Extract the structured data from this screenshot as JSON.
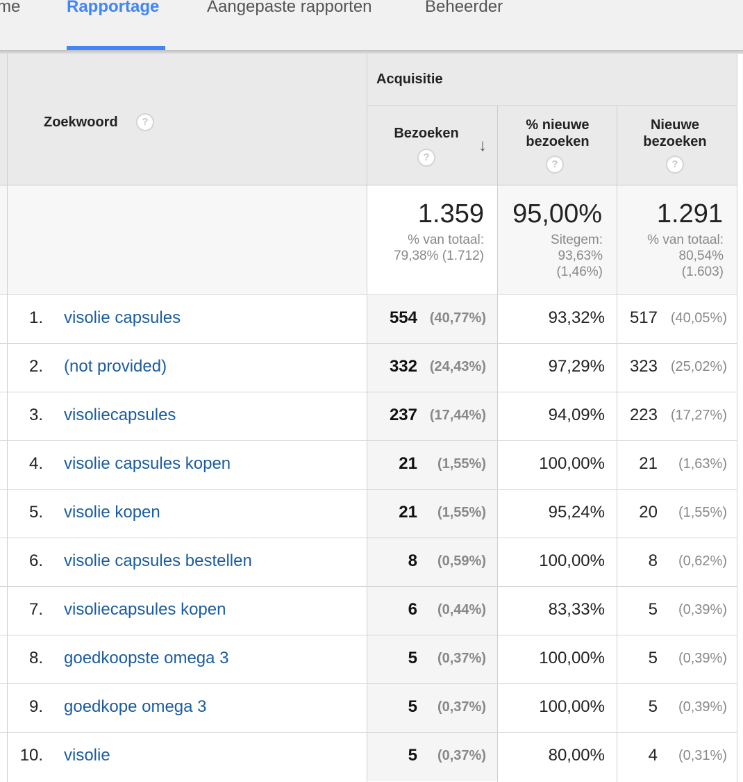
{
  "nav": {
    "tabs": [
      {
        "label": "me"
      },
      {
        "label": "Rapportage",
        "active": true
      },
      {
        "label": "Aangepaste rapporten"
      },
      {
        "label": "Beheerder"
      }
    ]
  },
  "table": {
    "group_header": "Acquisitie",
    "col_keyword": "Zoekwoord",
    "col_visits": "Bezoeken",
    "col_new_pct_1": "% nieuwe",
    "col_new_pct_2": "bezoeken",
    "col_new_1": "Nieuwe",
    "col_new_2": "bezoeken",
    "help_glyph": "?",
    "sort_glyph": "↓",
    "totals": {
      "visits": "1.359",
      "visits_sub1": "% van totaal:",
      "visits_sub2": "79,38% (1.712)",
      "new_pct": "95,00%",
      "new_pct_sub1": "Sitegem:",
      "new_pct_sub2": "93,63%",
      "new_pct_sub3": "(1,46%)",
      "new_visits": "1.291",
      "new_visits_sub1": "% van totaal:",
      "new_visits_sub2": "80,54%",
      "new_visits_sub3": "(1.603)"
    },
    "rows": [
      {
        "rank": "1.",
        "keyword": "visolie capsules",
        "visits": "554",
        "visits_pct": "(40,77%)",
        "new_pct": "93,32%",
        "new_visits": "517",
        "new_visits_pct": "(40,05%)"
      },
      {
        "rank": "2.",
        "keyword": "(not provided)",
        "visits": "332",
        "visits_pct": "(24,43%)",
        "new_pct": "97,29%",
        "new_visits": "323",
        "new_visits_pct": "(25,02%)"
      },
      {
        "rank": "3.",
        "keyword": "visoliecapsules",
        "visits": "237",
        "visits_pct": "(17,44%)",
        "new_pct": "94,09%",
        "new_visits": "223",
        "new_visits_pct": "(17,27%)"
      },
      {
        "rank": "4.",
        "keyword": "visolie capsules kopen",
        "visits": "21",
        "visits_pct": "(1,55%)",
        "new_pct": "100,00%",
        "new_visits": "21",
        "new_visits_pct": "(1,63%)"
      },
      {
        "rank": "5.",
        "keyword": "visolie kopen",
        "visits": "21",
        "visits_pct": "(1,55%)",
        "new_pct": "95,24%",
        "new_visits": "20",
        "new_visits_pct": "(1,55%)"
      },
      {
        "rank": "6.",
        "keyword": "visolie capsules bestellen",
        "visits": "8",
        "visits_pct": "(0,59%)",
        "new_pct": "100,00%",
        "new_visits": "8",
        "new_visits_pct": "(0,62%)"
      },
      {
        "rank": "7.",
        "keyword": "visoliecapsules kopen",
        "visits": "6",
        "visits_pct": "(0,44%)",
        "new_pct": "83,33%",
        "new_visits": "5",
        "new_visits_pct": "(0,39%)"
      },
      {
        "rank": "8.",
        "keyword": "goedkoopste omega 3",
        "visits": "5",
        "visits_pct": "(0,37%)",
        "new_pct": "100,00%",
        "new_visits": "5",
        "new_visits_pct": "(0,39%)"
      },
      {
        "rank": "9.",
        "keyword": "goedkope omega 3",
        "visits": "5",
        "visits_pct": "(0,37%)",
        "new_pct": "100,00%",
        "new_visits": "5",
        "new_visits_pct": "(0,39%)"
      },
      {
        "rank": "10.",
        "keyword": "visolie",
        "visits": "5",
        "visits_pct": "(0,37%)",
        "new_pct": "80,00%",
        "new_visits": "4",
        "new_visits_pct": "(0,31%)"
      }
    ]
  },
  "colors": {
    "accent": "#4285f4",
    "link": "#1a5c9f",
    "header_bg": "#eaeaea"
  }
}
